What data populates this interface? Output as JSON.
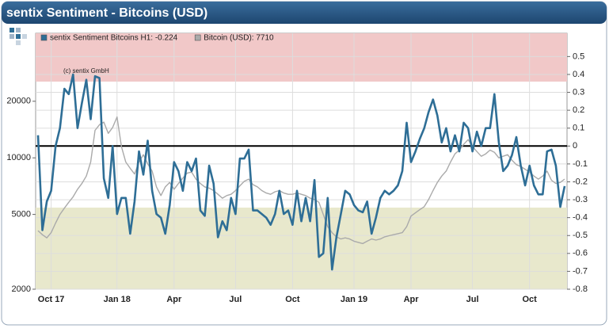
{
  "chart_data": {
    "type": "line",
    "title": "sentix Sentiment - Bitcoins (USD)",
    "annotation": "(c) sentix GmbH",
    "categories": [
      null,
      null,
      null,
      "Oct 17",
      null,
      null,
      null,
      null,
      null,
      null,
      null,
      null,
      null,
      null,
      null,
      null,
      null,
      null,
      "Jan 18",
      null,
      null,
      null,
      null,
      null,
      null,
      null,
      null,
      null,
      null,
      null,
      null,
      "Apr",
      null,
      null,
      null,
      null,
      null,
      null,
      null,
      null,
      null,
      null,
      null,
      null,
      null,
      "Jul",
      null,
      null,
      null,
      null,
      null,
      null,
      null,
      null,
      null,
      null,
      null,
      null,
      "Oct",
      null,
      null,
      null,
      null,
      null,
      null,
      null,
      null,
      null,
      null,
      null,
      null,
      null,
      "Jan 19",
      null,
      null,
      null,
      null,
      null,
      null,
      null,
      null,
      null,
      null,
      null,
      null,
      "Apr",
      null,
      null,
      null,
      null,
      null,
      null,
      null,
      null,
      null,
      null,
      null,
      null,
      null,
      "Jul",
      null,
      null,
      null,
      null,
      null,
      null,
      null,
      null,
      null,
      null,
      null,
      null,
      "Oct",
      null,
      null,
      null,
      null,
      null,
      null,
      null,
      null
    ],
    "series": [
      {
        "name": "sentix Sentiment Bitcoins H1: -0.224",
        "color": "#2e6e96",
        "axis": "y2",
        "values": [
          0.06,
          -0.47,
          -0.31,
          -0.25,
          0,
          0.1,
          0.32,
          0.29,
          0.4,
          0.1,
          0.24,
          0.37,
          0.15,
          0.39,
          0.38,
          -0.18,
          -0.29,
          0,
          -0.38,
          -0.29,
          -0.29,
          -0.49,
          -0.31,
          -0.03,
          -0.16,
          0.03,
          -0.25,
          -0.38,
          -0.4,
          -0.49,
          -0.33,
          -0.09,
          -0.14,
          -0.25,
          -0.09,
          -0.14,
          -0.07,
          -0.36,
          -0.39,
          -0.11,
          -0.21,
          -0.51,
          -0.42,
          -0.47,
          -0.29,
          -0.38,
          -0.07,
          -0.07,
          -0.02,
          -0.36,
          -0.36,
          -0.38,
          -0.4,
          -0.44,
          -0.38,
          -0.25,
          -0.38,
          -0.36,
          -0.44,
          -0.25,
          -0.42,
          -0.29,
          -0.42,
          -0.19,
          -0.62,
          -0.6,
          -0.29,
          -0.69,
          -0.51,
          -0.38,
          -0.25,
          -0.27,
          -0.33,
          -0.36,
          -0.37,
          -0.31,
          -0.49,
          -0.4,
          -0.29,
          -0.25,
          -0.27,
          -0.25,
          -0.22,
          -0.14,
          0.13,
          -0.09,
          -0.03,
          0.04,
          0.1,
          0.19,
          0.26,
          0.17,
          0.02,
          0.1,
          -0.03,
          0.06,
          -0.03,
          0.13,
          0.1,
          -0.03,
          0.08,
          0,
          0.1,
          0.1,
          0.29,
          0.02,
          -0.14,
          -0.11,
          -0.05,
          0.05,
          -0.11,
          -0.22,
          -0.11,
          -0.22,
          -0.27,
          -0.27,
          -0.03,
          -0.02,
          -0.11,
          -0.34,
          -0.224
        ]
      },
      {
        "name": "Bitcoin (USD): 7710",
        "color": "#aaaaaa",
        "axis": "y",
        "values": [
          4100,
          3900,
          3750,
          4000,
          4500,
          5000,
          5400,
          5800,
          6200,
          6800,
          7300,
          8000,
          9500,
          14000,
          15000,
          15500,
          13500,
          14500,
          16500,
          11500,
          9500,
          8800,
          8200,
          9500,
          10400,
          9300,
          8500,
          7000,
          6300,
          7000,
          7400,
          6800,
          7300,
          7800,
          8300,
          8400,
          7700,
          7300,
          7000,
          6900,
          6700,
          6400,
          6100,
          6300,
          6400,
          6700,
          7100,
          7500,
          7700,
          7200,
          7000,
          6700,
          6500,
          6400,
          6600,
          6700,
          6500,
          6400,
          6400,
          6500,
          6400,
          6300,
          6100,
          6000,
          5800,
          5000,
          4300,
          4000,
          3800,
          3700,
          3750,
          3700,
          3600,
          3550,
          3500,
          3600,
          3700,
          3650,
          3700,
          3800,
          3850,
          3900,
          3950,
          4000,
          4300,
          4900,
          5100,
          5300,
          5500,
          6000,
          6700,
          7400,
          8000,
          8500,
          9500,
          10500,
          11000,
          11800,
          12500,
          11500,
          10800,
          10200,
          10500,
          11000,
          10700,
          10000,
          10200,
          10400,
          9700,
          9200,
          9000,
          8700,
          8400,
          8000,
          7700,
          8000,
          8500,
          7600,
          7300,
          7400,
          7710
        ]
      }
    ],
    "ylim": [
      2000,
      46000
    ],
    "yticks": [
      2000,
      5000,
      10000,
      20000
    ],
    "ylog": true,
    "y2lim": [
      -0.8,
      0.63
    ],
    "y2ticks": [
      0.5,
      0.4,
      0.3,
      0.2,
      0.1,
      0,
      -0.1,
      -0.2,
      -0.3,
      -0.4,
      -0.5,
      -0.6,
      -0.7,
      -0.8
    ],
    "reference_line": 0,
    "grid": true
  }
}
